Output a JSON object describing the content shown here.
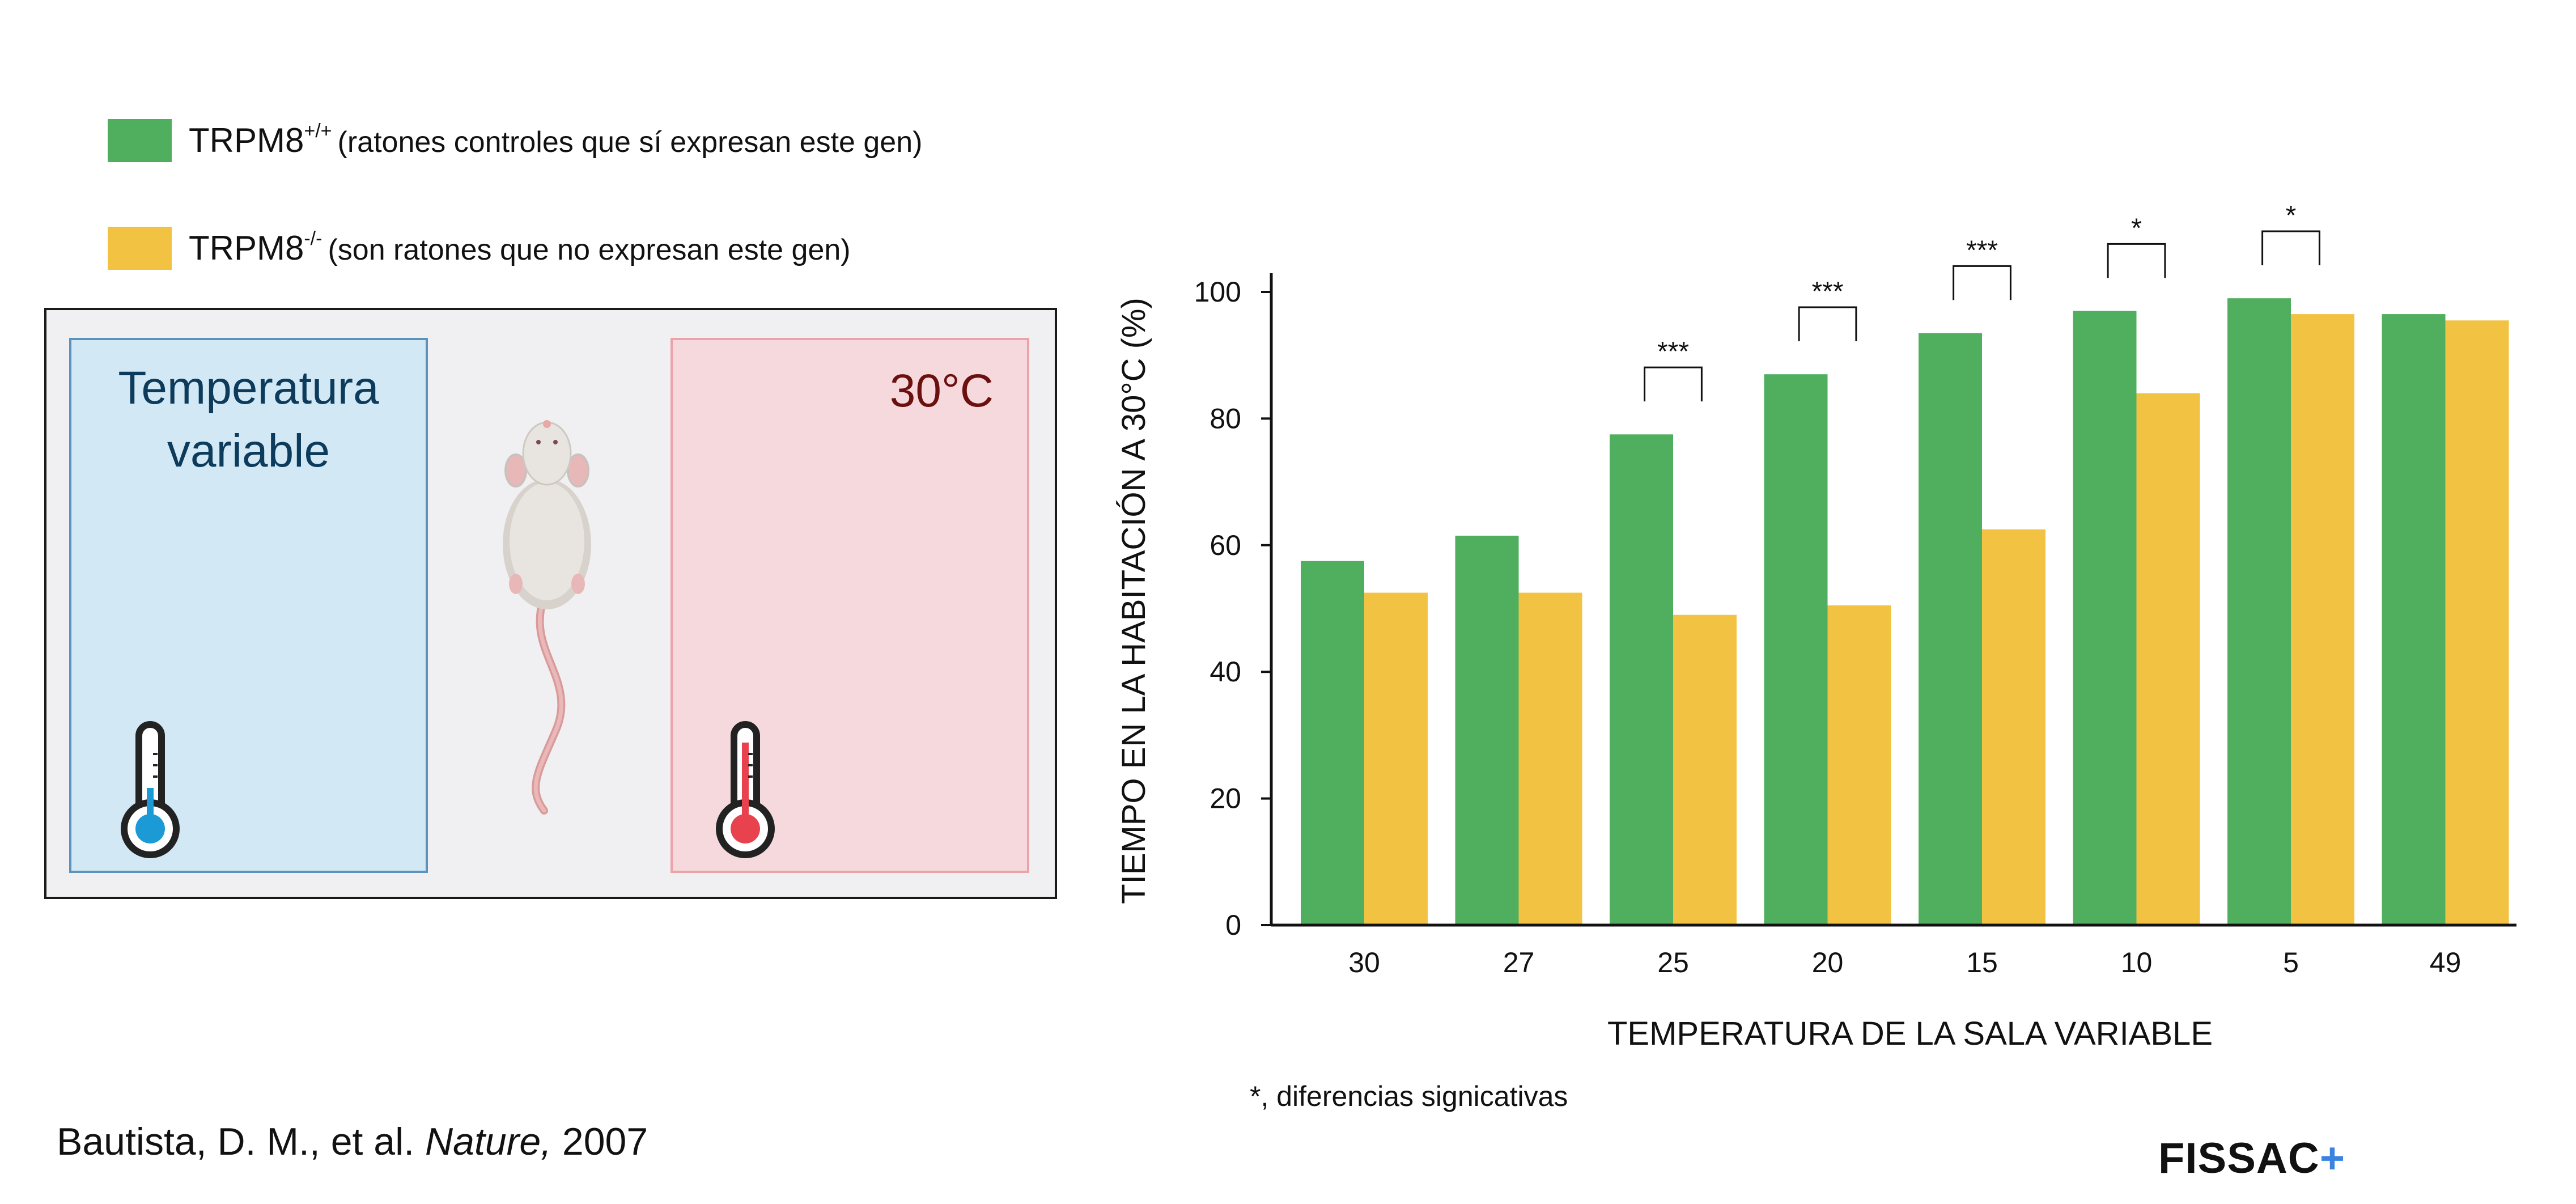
{
  "legend": [
    {
      "name": "TRPM8",
      "sup": "+/+",
      "desc": "(ratones controles que sí expresan este gen)",
      "color": "#50af5e"
    },
    {
      "name": "TRPM8",
      "sup": "-/-",
      "desc": "(son ratones que no expresan este gen)",
      "color": "#f2c343"
    }
  ],
  "setup": {
    "left_label_line1": "Temperatura",
    "left_label_line2": "variable",
    "right_label": "30°C",
    "left_thermometer_color": "#1c9ad6",
    "right_thermometer_color": "#e8424f"
  },
  "chart_data": {
    "type": "bar",
    "categories": [
      "30",
      "27",
      "25",
      "20",
      "15",
      "10",
      "5",
      "49"
    ],
    "series": [
      {
        "name": "TRPM8+/+",
        "color": "#50af5e",
        "values": [
          57.5,
          61.5,
          77.5,
          87,
          93.5,
          97,
          99,
          96.5
        ]
      },
      {
        "name": "TRPM8-/-",
        "color": "#f2c343",
        "values": [
          52.5,
          52.5,
          49,
          50.5,
          62.5,
          84,
          96.5,
          95.5
        ]
      }
    ],
    "significance": [
      {
        "category": "25",
        "label": "***"
      },
      {
        "category": "20",
        "label": "***"
      },
      {
        "category": "15",
        "label": "***"
      },
      {
        "category": "10",
        "label": "*"
      },
      {
        "category": "5",
        "label": "*"
      }
    ],
    "xlabel": "TEMPERATURA DE LA SALA VARIABLE",
    "ylabel": "TIEMPO EN LA HABITACIÓN A 30°C (%)",
    "ylim": [
      0,
      100
    ],
    "yticks": [
      0,
      20,
      40,
      60,
      80,
      100
    ],
    "grid": false
  },
  "footnote": "*, diferencias signicativas",
  "citation": {
    "authors": "Bautista, D. M., et al. ",
    "journal": "Nature,",
    "year": " 2007"
  },
  "logo": {
    "text": "FISSAC",
    "plus": "+",
    "plus_color": "#3a84e0"
  }
}
